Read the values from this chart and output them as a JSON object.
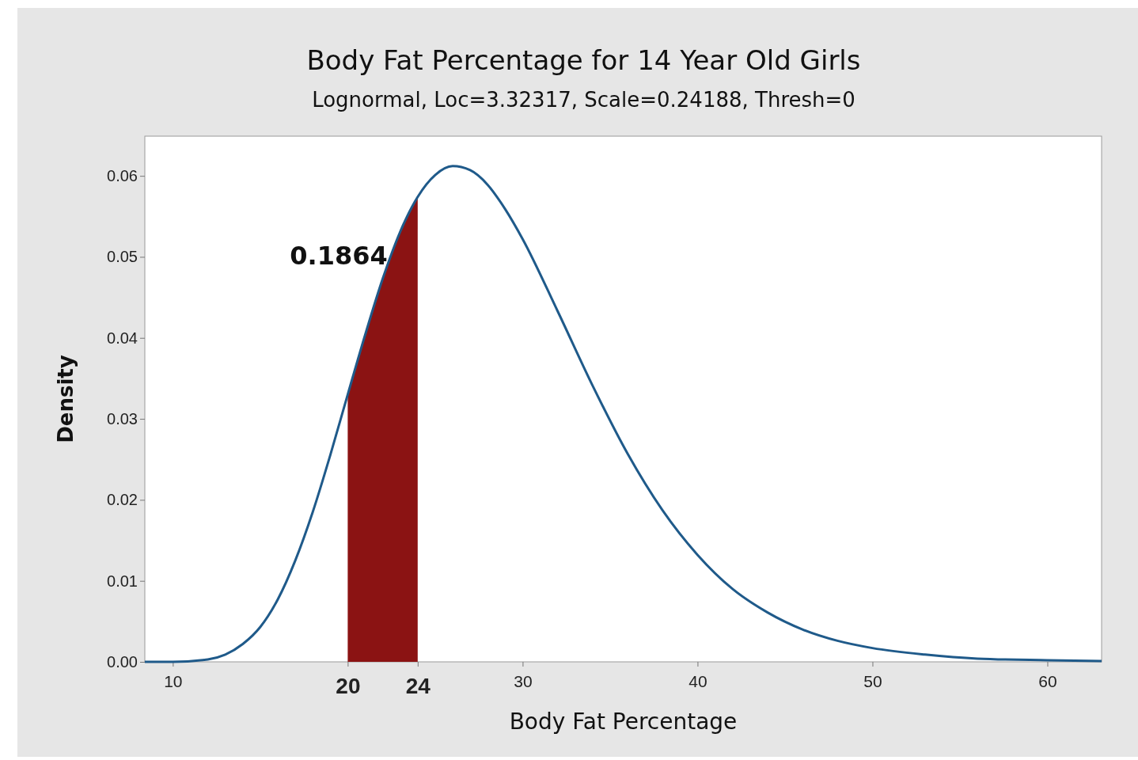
{
  "chart_data": {
    "type": "line",
    "title": "Body Fat Percentage for 14 Year Old Girls",
    "subtitle": "Lognormal, Loc=3.32317, Scale=0.24188, Thresh=0",
    "xlabel": "Body Fat Percentage",
    "ylabel": "Density",
    "xlim": [
      8.4,
      63.1
    ],
    "ylim": [
      0,
      0.0649
    ],
    "xticks": [
      10,
      20,
      24,
      30,
      40,
      50,
      60
    ],
    "yticks": [
      {
        "value": 0,
        "label": "0.00"
      },
      {
        "value": 0.01,
        "label": "0.01"
      },
      {
        "value": 0.02,
        "label": "0.02"
      },
      {
        "value": 0.03,
        "label": "0.03"
      },
      {
        "value": 0.04,
        "label": "0.04"
      },
      {
        "value": 0.05,
        "label": "0.05"
      },
      {
        "value": 0.06,
        "label": "0.06"
      }
    ],
    "grid": false,
    "annotations": [
      "0.1864"
    ],
    "series": [
      {
        "type": "area",
        "color": "#8b1313",
        "x": [
          20,
          21,
          22,
          23,
          24
        ],
        "values": [
          0.033,
          0.0404,
          0.0473,
          0.0531,
          0.0574
        ]
      },
      {
        "color": "#1f5a8a",
        "x": [
          8.4,
          10,
          12,
          13,
          14,
          15,
          16,
          17,
          18,
          19,
          20,
          21,
          22,
          23,
          24,
          25,
          26,
          27,
          28,
          29,
          30,
          32,
          34,
          36,
          38,
          40,
          42,
          44,
          46,
          48,
          50,
          53,
          56,
          60,
          63.1
        ],
        "values": [
          0,
          0,
          0.0003,
          0.0009,
          0.0022,
          0.0043,
          0.0077,
          0.0125,
          0.0185,
          0.0255,
          0.033,
          0.0404,
          0.0473,
          0.0531,
          0.0574,
          0.0601,
          0.0612,
          0.0607,
          0.0589,
          0.0559,
          0.0522,
          0.0433,
          0.0341,
          0.0257,
          0.0187,
          0.0132,
          0.009,
          0.0061,
          0.004,
          0.0026,
          0.0017,
          0.0009,
          0.0004,
          0.0002,
          0.0001
        ]
      }
    ]
  }
}
